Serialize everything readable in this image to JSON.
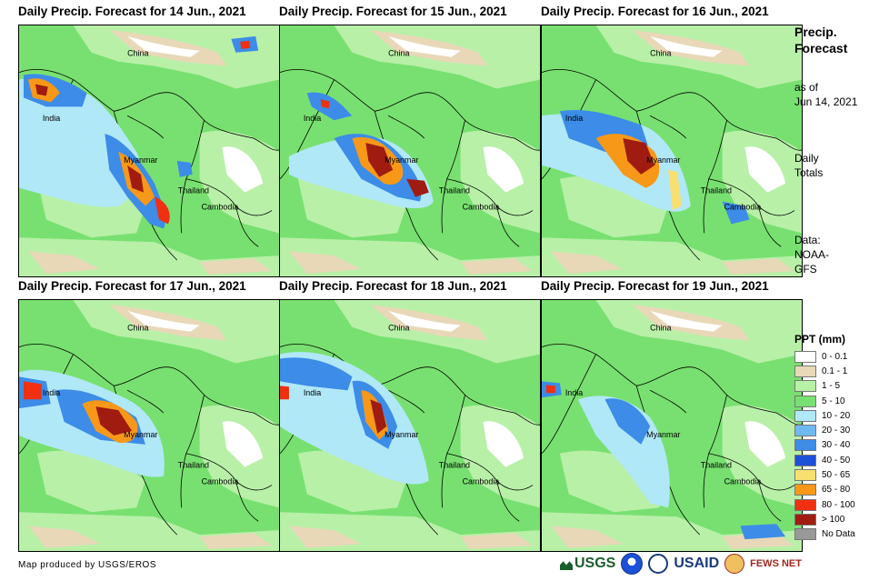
{
  "panels": [
    {
      "title": "Daily Precip. Forecast for 14 Jun., 2021"
    },
    {
      "title": "Daily Precip. Forecast for 15 Jun., 2021"
    },
    {
      "title": "Daily Precip. Forecast for 16 Jun., 2021"
    },
    {
      "title": "Daily Precip. Forecast for 17 Jun., 2021"
    },
    {
      "title": "Daily Precip. Forecast for 18 Jun., 2021"
    },
    {
      "title": "Daily Precip. Forecast for 19 Jun., 2021"
    }
  ],
  "map_labels": {
    "china": "China",
    "india": "India",
    "myanmar": "Myanmar",
    "thailand": "Thailand",
    "cambodia": "Cambodia"
  },
  "side": {
    "title_line1": "Precip.",
    "title_line2": "Forecast",
    "asof_line1": "as of",
    "asof_line2": "Jun 14, 2021",
    "totals_line1": "Daily",
    "totals_line2": "Totals",
    "data_line1": "Data:",
    "data_line2": "NOAA-",
    "data_line3": "GFS"
  },
  "legend": {
    "title": "PPT (mm)",
    "items": [
      {
        "label": "0 - 0.1",
        "color": "#ffffff"
      },
      {
        "label": "0.1 - 1",
        "color": "#e8d8b8"
      },
      {
        "label": "1 - 5",
        "color": "#b8f0a8"
      },
      {
        "label": "5 - 10",
        "color": "#78e070"
      },
      {
        "label": "10 - 20",
        "color": "#b0e8f8"
      },
      {
        "label": "20 - 30",
        "color": "#70b8f0"
      },
      {
        "label": "30 - 40",
        "color": "#3c8ce8"
      },
      {
        "label": "40 - 50",
        "color": "#1c50d8"
      },
      {
        "label": "50 - 65",
        "color": "#f8e070"
      },
      {
        "label": "65 - 80",
        "color": "#f89818"
      },
      {
        "label": "80 - 100",
        "color": "#f03010"
      },
      {
        "label": "> 100",
        "color": "#a01c10"
      },
      {
        "label": "No Data",
        "color": "#999999"
      }
    ]
  },
  "credit": "Map produced by USGS/EROS",
  "logos": {
    "usgs": "USGS",
    "usaid": "USAID",
    "fews": "FEWS NET"
  }
}
